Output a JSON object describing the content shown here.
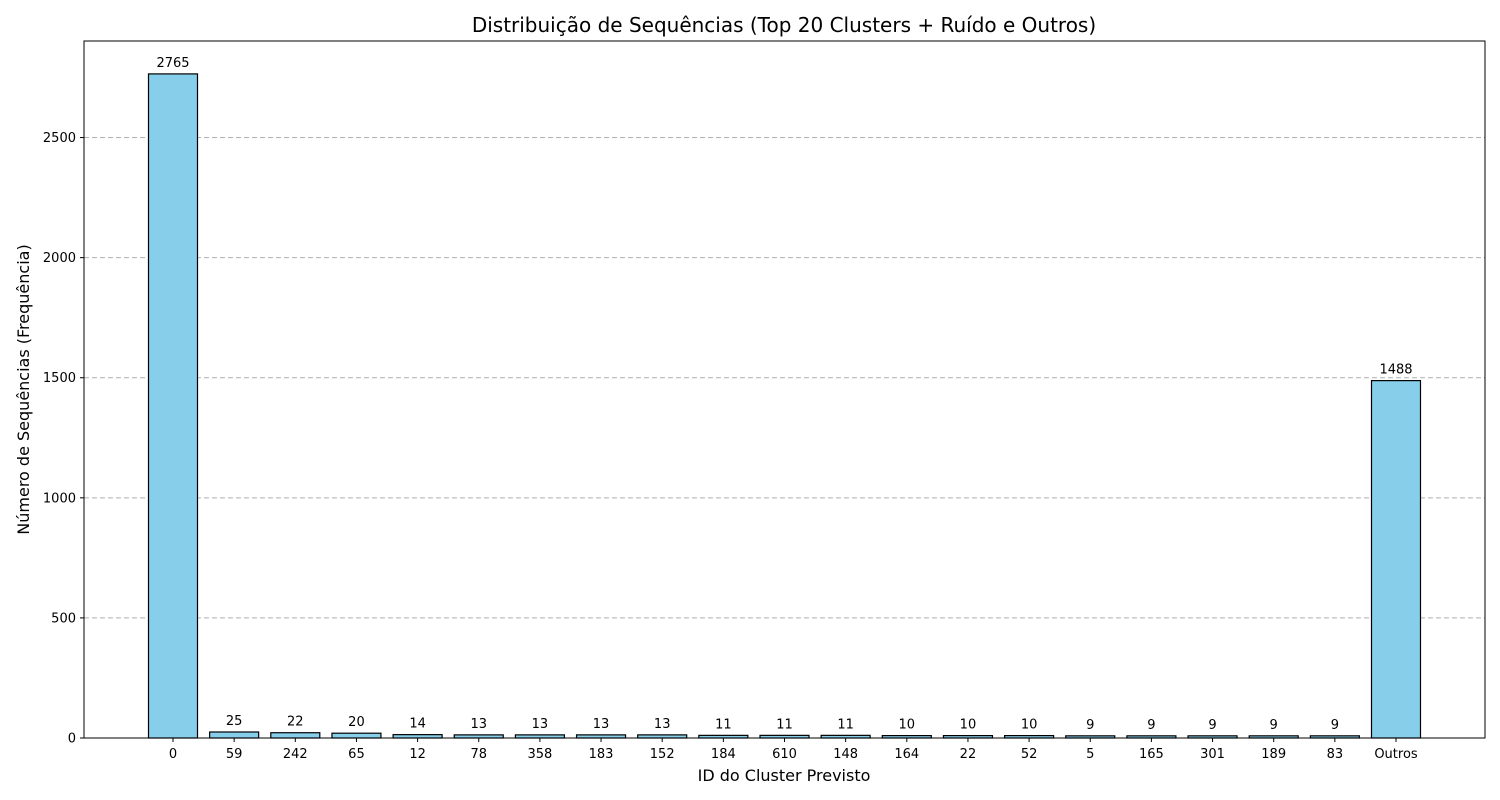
{
  "chart_data": {
    "type": "bar",
    "title": "Distribuição de Sequências (Top 20 Clusters + Ruído e Outros)",
    "xlabel": "ID do Cluster Previsto",
    "ylabel": "Número de Sequências (Frequência)",
    "categories": [
      "0",
      "59",
      "242",
      "65",
      "12",
      "78",
      "358",
      "183",
      "152",
      "184",
      "610",
      "148",
      "164",
      "22",
      "52",
      "5",
      "165",
      "301",
      "189",
      "83",
      "Outros"
    ],
    "values": [
      2765,
      25,
      22,
      20,
      14,
      13,
      13,
      13,
      13,
      11,
      11,
      11,
      10,
      10,
      10,
      9,
      9,
      9,
      9,
      9,
      1488
    ],
    "ylim": [
      0,
      2902
    ],
    "yticks": [
      0,
      500,
      1000,
      1500,
      2000,
      2500
    ],
    "grid": "y-dashed",
    "bar_color": "#87ceeb",
    "edge_color": "#000000"
  }
}
